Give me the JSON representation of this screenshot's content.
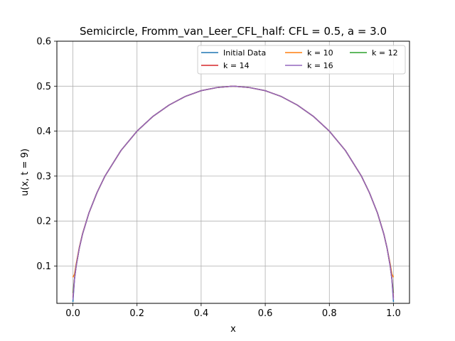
{
  "chart_data": {
    "type": "line",
    "title": "Semicircle, Fromm_van_Leer_CFL_half: CFL = 0.5, a = 3.0",
    "xlabel": "x",
    "ylabel": "u(x, t = 9)",
    "xlim": [
      -0.05,
      1.05
    ],
    "ylim": [
      0.017,
      0.6
    ],
    "grid": true,
    "legend_position": "top-right",
    "legend_columns": 3,
    "x_ticks": [
      0.0,
      0.2,
      0.4,
      0.6,
      0.8,
      1.0
    ],
    "x_tick_labels": [
      "0.0",
      "0.2",
      "0.4",
      "0.6",
      "0.8",
      "1.0"
    ],
    "y_ticks": [
      0.1,
      0.2,
      0.3,
      0.4,
      0.5,
      0.6
    ],
    "y_tick_labels": [
      "0.1",
      "0.2",
      "0.3",
      "0.4",
      "0.5",
      "0.6"
    ],
    "x": [
      0.0,
      0.005,
      0.01,
      0.02,
      0.03,
      0.05,
      0.075,
      0.1,
      0.15,
      0.2,
      0.25,
      0.3,
      0.35,
      0.4,
      0.45,
      0.5,
      0.55,
      0.6,
      0.65,
      0.7,
      0.75,
      0.8,
      0.85,
      0.9,
      0.925,
      0.95,
      0.97,
      0.98,
      0.99,
      0.995,
      1.0
    ],
    "series": [
      {
        "name": "Initial Data",
        "color": "#1f77b4",
        "values": [
          0.02,
          0.071,
          0.099,
          0.14,
          0.171,
          0.218,
          0.263,
          0.3,
          0.357,
          0.4,
          0.433,
          0.458,
          0.477,
          0.49,
          0.497,
          0.5,
          0.497,
          0.49,
          0.477,
          0.458,
          0.433,
          0.4,
          0.357,
          0.3,
          0.263,
          0.218,
          0.171,
          0.14,
          0.099,
          0.071,
          0.02
        ]
      },
      {
        "name": "k = 10",
        "color": "#ff7f0e",
        "values": [
          0.075,
          0.082,
          0.104,
          0.142,
          0.172,
          0.218,
          0.263,
          0.3,
          0.357,
          0.4,
          0.433,
          0.458,
          0.477,
          0.49,
          0.497,
          0.5,
          0.497,
          0.49,
          0.477,
          0.458,
          0.433,
          0.4,
          0.357,
          0.3,
          0.263,
          0.218,
          0.171,
          0.14,
          0.104,
          0.082,
          0.075
        ]
      },
      {
        "name": "k = 12",
        "color": "#2ca02c",
        "values": [
          0.04,
          0.073,
          0.1,
          0.14,
          0.171,
          0.218,
          0.263,
          0.3,
          0.357,
          0.4,
          0.433,
          0.458,
          0.477,
          0.49,
          0.497,
          0.5,
          0.497,
          0.49,
          0.477,
          0.458,
          0.433,
          0.4,
          0.357,
          0.3,
          0.263,
          0.218,
          0.171,
          0.14,
          0.1,
          0.073,
          0.04
        ]
      },
      {
        "name": "k = 14",
        "color": "#d62728",
        "values": [
          0.03,
          0.072,
          0.099,
          0.14,
          0.171,
          0.218,
          0.263,
          0.3,
          0.357,
          0.4,
          0.433,
          0.458,
          0.477,
          0.49,
          0.497,
          0.5,
          0.497,
          0.49,
          0.477,
          0.458,
          0.433,
          0.4,
          0.357,
          0.3,
          0.263,
          0.218,
          0.171,
          0.14,
          0.099,
          0.072,
          0.03
        ]
      },
      {
        "name": "k = 16",
        "color": "#9467bd",
        "values": [
          0.025,
          0.071,
          0.099,
          0.14,
          0.171,
          0.218,
          0.263,
          0.3,
          0.357,
          0.4,
          0.433,
          0.458,
          0.477,
          0.49,
          0.497,
          0.5,
          0.497,
          0.49,
          0.477,
          0.458,
          0.433,
          0.4,
          0.357,
          0.3,
          0.263,
          0.218,
          0.171,
          0.14,
          0.099,
          0.071,
          0.025
        ]
      }
    ]
  }
}
